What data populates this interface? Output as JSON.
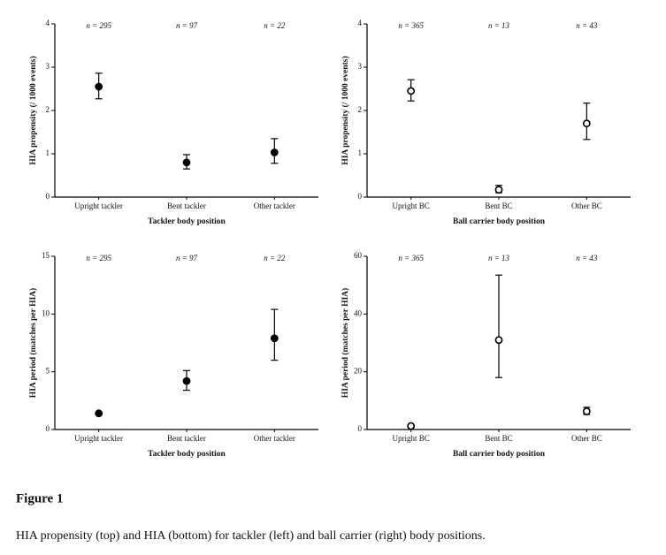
{
  "chart_data": [
    {
      "type": "dotplot",
      "ylabel": "HIA propensity (/ 1000 events)",
      "xlabel": "Tackler body position",
      "categories": [
        "Upright tackler",
        "Bent tackler",
        "Other tackler"
      ],
      "values": [
        2.55,
        0.8,
        1.03
      ],
      "lower": [
        2.27,
        0.65,
        0.78
      ],
      "upper": [
        2.86,
        0.98,
        1.35
      ],
      "annotations": [
        "n = 295",
        "n = 97",
        "n = 22"
      ],
      "ylim": [
        0,
        4
      ],
      "yticks": [
        0,
        1,
        2,
        3,
        4
      ],
      "marker": "filled",
      "color": "#000000"
    },
    {
      "type": "dotplot",
      "ylabel": "HIA propensity (/ 1000 events)",
      "xlabel": "Ball carrier body position",
      "categories": [
        "Upright BC",
        "Bent BC",
        "Other BC"
      ],
      "values": [
        2.45,
        0.17,
        1.7
      ],
      "lower": [
        2.22,
        0.1,
        1.33
      ],
      "upper": [
        2.71,
        0.27,
        2.17
      ],
      "annotations": [
        "n = 365",
        "n = 13",
        "n = 43"
      ],
      "ylim": [
        0,
        4
      ],
      "yticks": [
        0,
        1,
        2,
        3,
        4
      ],
      "marker": "open",
      "color": "#000000"
    },
    {
      "type": "dotplot",
      "ylabel": "HIA period (matches per HIA)",
      "xlabel": "Tackler body position",
      "categories": [
        "Upright tackler",
        "Bent tackler",
        "Other tackler"
      ],
      "values": [
        1.4,
        4.2,
        7.9
      ],
      "lower": [
        1.3,
        3.4,
        6.0
      ],
      "upper": [
        1.5,
        5.1,
        10.4
      ],
      "annotations": [
        "n = 295",
        "n = 97",
        "n = 22"
      ],
      "ylim": [
        0,
        15
      ],
      "yticks": [
        0,
        5,
        10,
        15
      ],
      "marker": "filled",
      "color": "#000000"
    },
    {
      "type": "dotplot",
      "ylabel": "HIA period (matches per HIA)",
      "xlabel": "Ball carrier body position",
      "categories": [
        "Upright BC",
        "Bent BC",
        "Other BC"
      ],
      "values": [
        1.2,
        31,
        6.3
      ],
      "lower": [
        0.8,
        18,
        5.2
      ],
      "upper": [
        1.6,
        53.5,
        7.7
      ],
      "annotations": [
        "n = 365",
        "n = 13",
        "n = 43"
      ],
      "ylim": [
        0,
        60
      ],
      "yticks": [
        0,
        20,
        40,
        60
      ],
      "marker": "open",
      "color": "#000000"
    }
  ],
  "figure_label": "Figure 1",
  "caption": "HIA propensity (top) and HIA (bottom) for tackler (left) and ball carrier (right) body positions."
}
